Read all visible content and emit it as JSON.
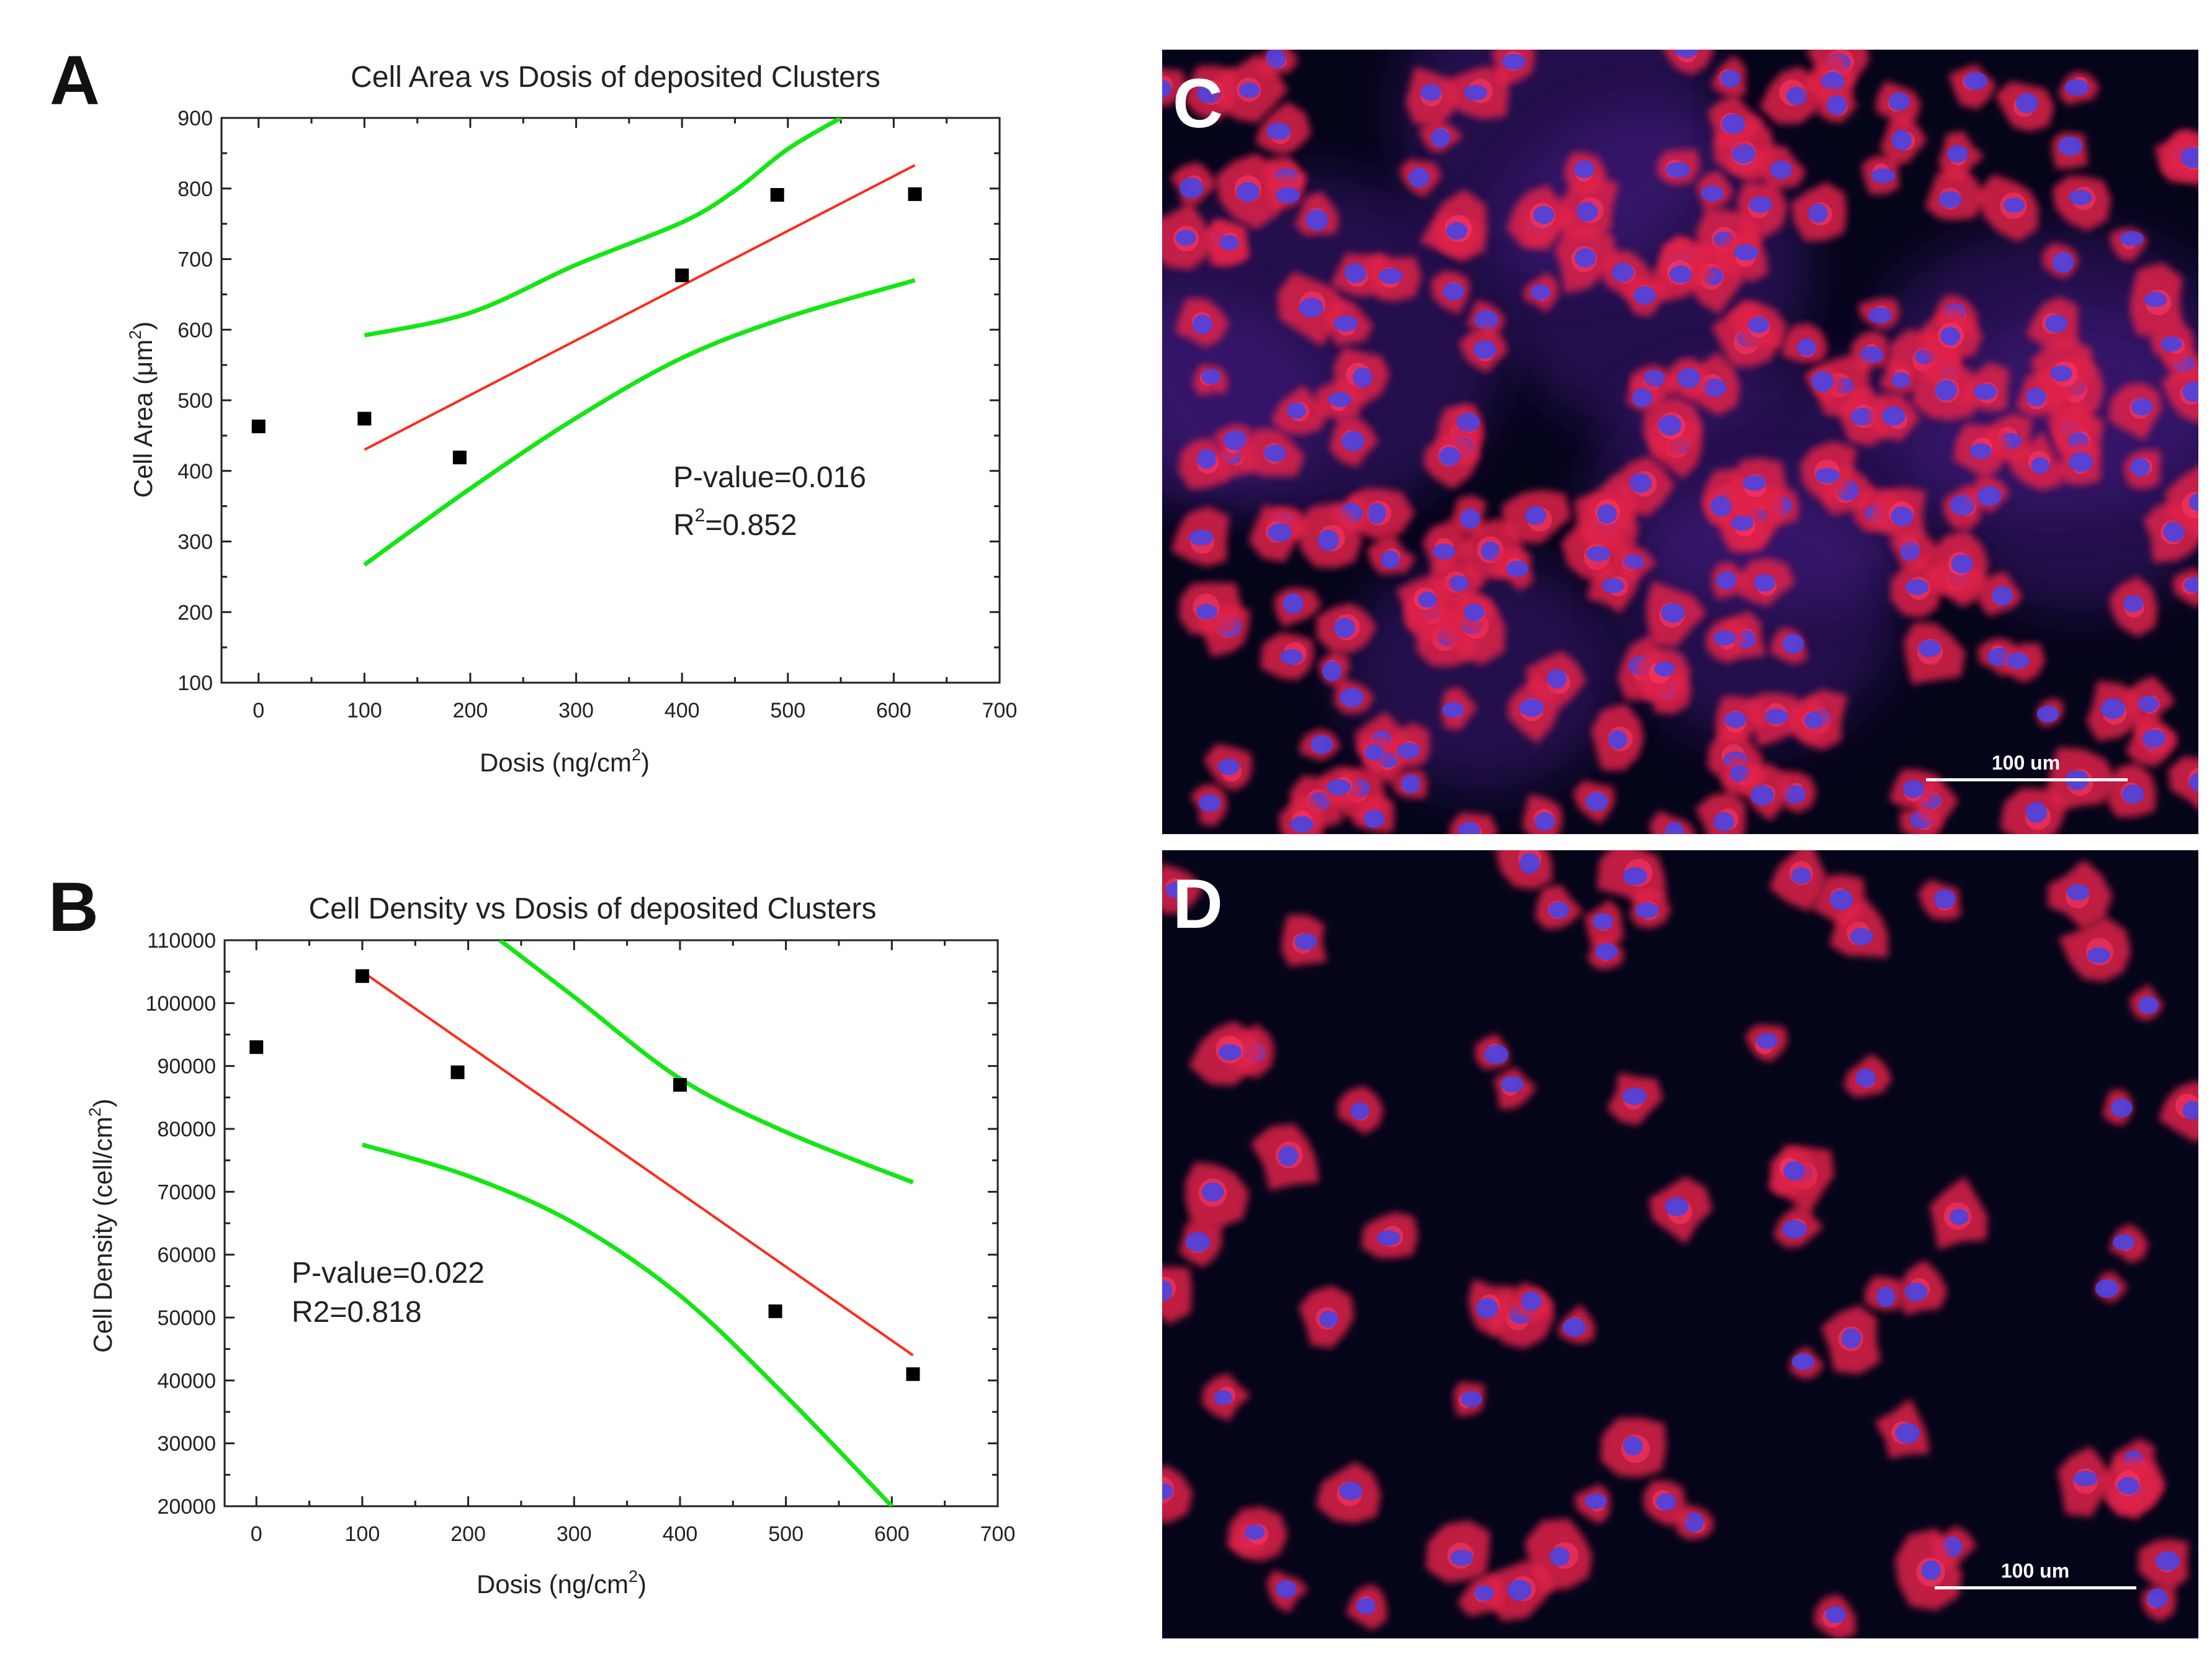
{
  "colors": {
    "fit_line": "#ff2a1a",
    "ci_band": "#14e614",
    "points": "#000000",
    "micrograph_bg": "#05051a",
    "cell_red": "#e0204a",
    "nucleus_blue": "#4a44e0"
  },
  "panel_letters": {
    "a": "A",
    "b": "B",
    "c": "C",
    "d": "D"
  },
  "micrographs": {
    "c": {
      "scale_bar_label": "100 um"
    },
    "d": {
      "scale_bar_label": "100 um"
    }
  },
  "chart_data": [
    {
      "id": "A",
      "type": "scatter",
      "title": "Cell Area vs Dosis of deposited Clusters",
      "xlabel_main": "Dosis (ng/cm",
      "xlabel_sup": "2",
      "xlabel_close": ")",
      "ylabel_main": "Cell Area (",
      "ylabel_mu": "μm",
      "ylabel_sup": "2",
      "ylabel_close": ")",
      "xlim": [
        -35,
        700
      ],
      "ylim": [
        100,
        900
      ],
      "xticks": [
        0,
        100,
        200,
        300,
        400,
        500,
        600,
        700
      ],
      "yticks": [
        100,
        200,
        300,
        400,
        500,
        600,
        700,
        800,
        900
      ],
      "points": [
        {
          "x": 0,
          "y": 463
        },
        {
          "x": 100,
          "y": 474
        },
        {
          "x": 190,
          "y": 419
        },
        {
          "x": 400,
          "y": 677
        },
        {
          "x": 490,
          "y": 791
        },
        {
          "x": 620,
          "y": 792
        }
      ],
      "fit_line": {
        "x1": 100,
        "y1": 430,
        "x2": 620,
        "y2": 833
      },
      "ci_upper": [
        [
          100,
          592
        ],
        [
          200,
          624
        ],
        [
          300,
          692
        ],
        [
          400,
          752
        ],
        [
          450,
          797
        ],
        [
          500,
          856
        ],
        [
          550,
          900
        ]
      ],
      "ci_lower": [
        [
          100,
          267
        ],
        [
          200,
          375
        ],
        [
          300,
          475
        ],
        [
          400,
          560
        ],
        [
          500,
          618
        ],
        [
          620,
          670
        ]
      ],
      "annotation_line1": "P-value=0.016",
      "annotation_line2_pre": "R",
      "annotation_line2_sup": "2",
      "annotation_line2_post": "=0.852"
    },
    {
      "id": "B",
      "type": "scatter",
      "title": "Cell Density vs Dosis of deposited Clusters",
      "xlabel_main": "Dosis (ng/cm",
      "xlabel_sup": "2",
      "xlabel_close": ")",
      "ylabel_main": "Cell Density (cell/cm",
      "ylabel_sup": "2",
      "ylabel_close": ")",
      "xlim": [
        -30,
        700
      ],
      "ylim": [
        20000,
        110000
      ],
      "xticks": [
        0,
        100,
        200,
        300,
        400,
        500,
        600,
        700
      ],
      "yticks": [
        20000,
        30000,
        40000,
        50000,
        60000,
        70000,
        80000,
        90000,
        100000,
        110000
      ],
      "points": [
        {
          "x": 0,
          "y": 93000
        },
        {
          "x": 100,
          "y": 104300
        },
        {
          "x": 190,
          "y": 89000
        },
        {
          "x": 400,
          "y": 87000
        },
        {
          "x": 490,
          "y": 51000
        },
        {
          "x": 620,
          "y": 41000
        }
      ],
      "fit_line": {
        "x1": 100,
        "y1": 105000,
        "x2": 620,
        "y2": 44000
      },
      "ci_upper": [
        [
          230,
          110000
        ],
        [
          300,
          101000
        ],
        [
          400,
          88000
        ],
        [
          500,
          79500
        ],
        [
          620,
          71500
        ]
      ],
      "ci_lower": [
        [
          100,
          77500
        ],
        [
          200,
          72500
        ],
        [
          300,
          65000
        ],
        [
          400,
          53500
        ],
        [
          500,
          37500
        ],
        [
          600,
          20000
        ]
      ],
      "annotation_line1": "P-value=0.022",
      "annotation_line2": "R2=0.818"
    }
  ]
}
